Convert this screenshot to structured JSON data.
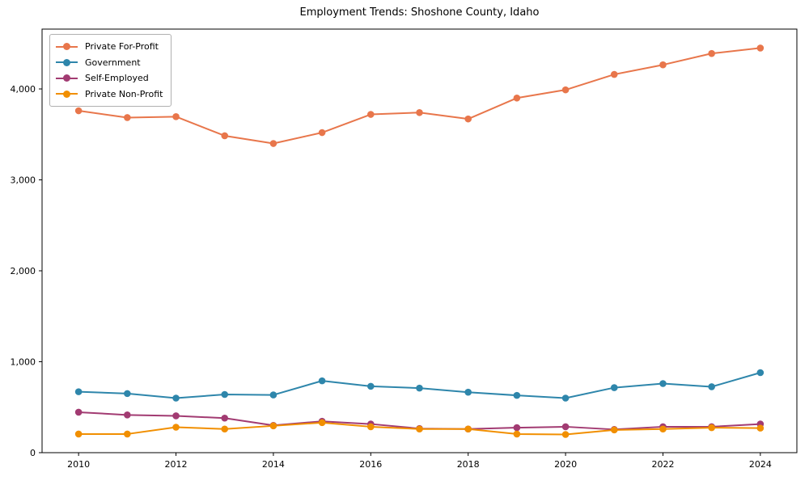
{
  "chart_data": {
    "type": "line",
    "title": "Employment Trends: Shoshone County, Idaho",
    "x": [
      2010,
      2011,
      2012,
      2013,
      2014,
      2015,
      2016,
      2017,
      2018,
      2019,
      2020,
      2021,
      2022,
      2023,
      2024
    ],
    "series": [
      {
        "name": "Private For-Profit",
        "color": "#e8764b",
        "values": [
          3760,
          3685,
          3695,
          3485,
          3400,
          3520,
          3720,
          3740,
          3670,
          3900,
          3990,
          4160,
          4265,
          4390,
          4450
        ]
      },
      {
        "name": "Government",
        "color": "#2e86ab",
        "values": [
          670,
          650,
          600,
          640,
          635,
          790,
          730,
          710,
          665,
          630,
          600,
          715,
          760,
          725,
          880
        ]
      },
      {
        "name": "Self-Employed",
        "color": "#a23b72",
        "values": [
          445,
          415,
          405,
          380,
          300,
          345,
          315,
          265,
          260,
          275,
          285,
          255,
          285,
          285,
          315
        ]
      },
      {
        "name": "Private Non-Profit",
        "color": "#f18f01",
        "values": [
          205,
          205,
          280,
          260,
          295,
          330,
          285,
          260,
          260,
          205,
          200,
          250,
          260,
          275,
          270
        ]
      }
    ],
    "xticks": [
      2010,
      2012,
      2014,
      2016,
      2018,
      2020,
      2022,
      2024
    ],
    "yticks": [
      0,
      1000,
      2000,
      3000,
      4000
    ],
    "ytick_labels": [
      "0",
      "1,000",
      "2,000",
      "3,000",
      "4,000"
    ],
    "xlim": [
      2009.25,
      2024.75
    ],
    "ylim": [
      0,
      4658
    ],
    "xlabel": "",
    "ylabel": "",
    "grid": false,
    "legend_position": "upper-left",
    "axis_color": "#000000",
    "background_color": "#ffffff"
  }
}
